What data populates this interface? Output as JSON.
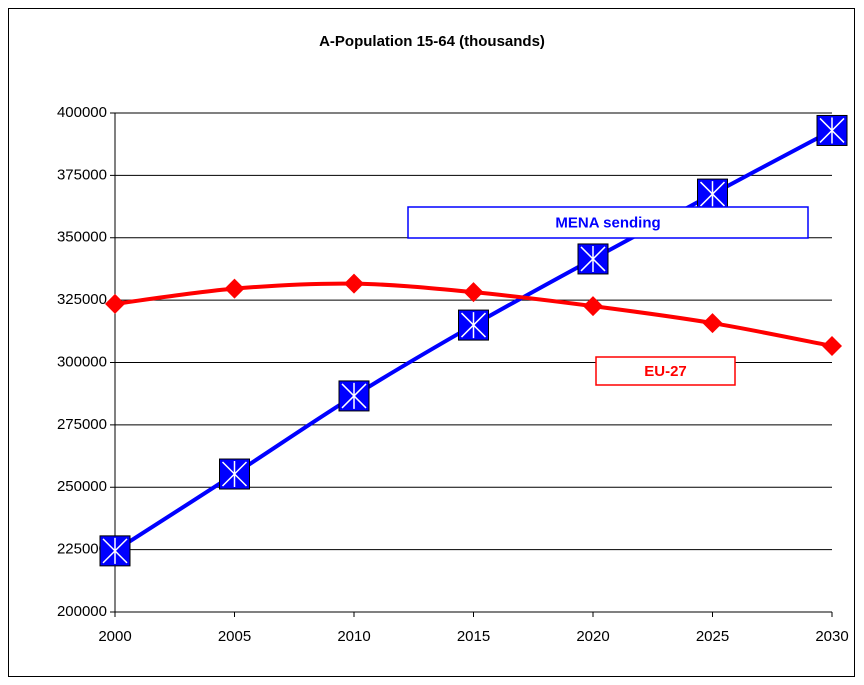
{
  "chart_data": {
    "type": "line",
    "title": "A-Population 15-64 (thousands)",
    "x": [
      2000,
      2005,
      2010,
      2015,
      2020,
      2025,
      2030
    ],
    "xlim": [
      2000,
      2030
    ],
    "xticks": [
      2000,
      2005,
      2010,
      2015,
      2020,
      2025,
      2030
    ],
    "ylim": [
      200000,
      400000
    ],
    "yticks": [
      200000,
      225000,
      250000,
      275000,
      300000,
      325000,
      350000,
      375000,
      400000
    ],
    "grid": true,
    "series": [
      {
        "name": "MENA sending",
        "color": "#0000ff",
        "values": [
          224500,
          255300,
          286600,
          315000,
          341500,
          367500,
          393000
        ]
      },
      {
        "name": "EU-27",
        "color": "#ff0000",
        "values": [
          323500,
          329600,
          331600,
          328200,
          322600,
          315800,
          306600
        ]
      }
    ]
  }
}
